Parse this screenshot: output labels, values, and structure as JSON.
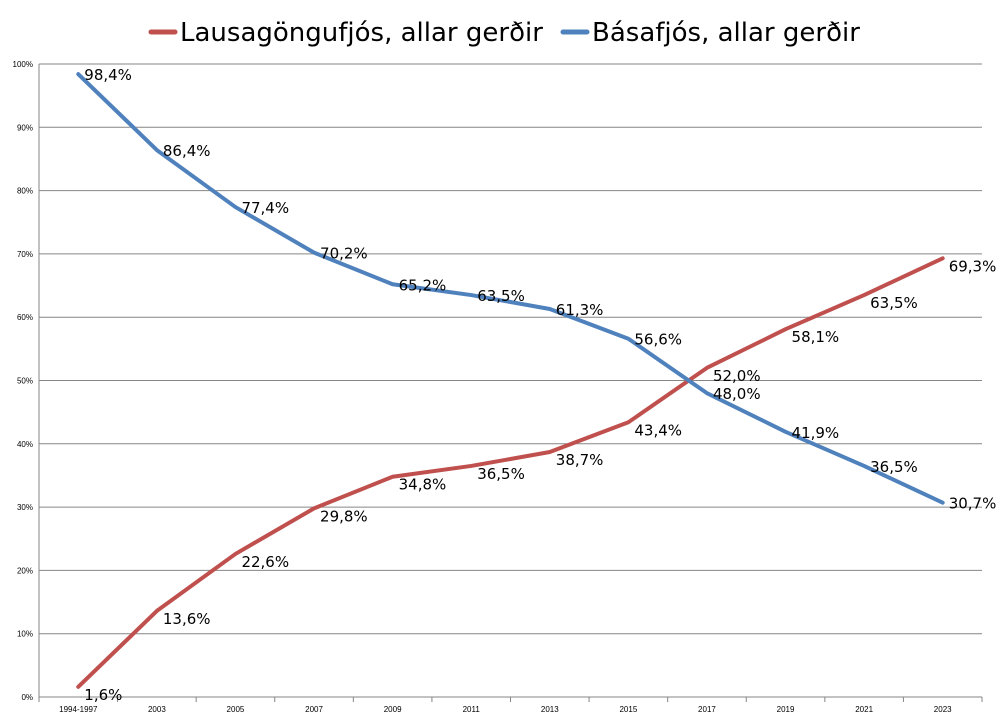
{
  "chart_data": {
    "type": "line",
    "categories": [
      "1994-1997",
      "2003",
      "2005",
      "2007",
      "2009",
      "2011",
      "2013",
      "2015",
      "2017",
      "2019",
      "2021",
      "2023"
    ],
    "series": [
      {
        "name": "Lausagöngufjós, allar gerðir",
        "color": "#C0504D",
        "values": [
          1.6,
          13.6,
          22.6,
          29.8,
          34.8,
          36.5,
          38.7,
          43.4,
          52.0,
          58.1,
          63.5,
          69.3
        ],
        "labels": [
          "1,6%",
          "13,6%",
          "22,6%",
          "29,8%",
          "34,8%",
          "36,5%",
          "38,7%",
          "43,4%",
          "52,0%",
          "58,1%",
          "63,5%",
          "69,3%"
        ]
      },
      {
        "name": "Básafjós, allar gerðir",
        "color": "#4F81BD",
        "values": [
          98.4,
          86.4,
          77.4,
          70.2,
          65.2,
          63.5,
          61.3,
          56.6,
          48.0,
          41.9,
          36.5,
          30.7
        ],
        "labels": [
          "98,4%",
          "86,4%",
          "77,4%",
          "70,2%",
          "65,2%",
          "63,5%",
          "61,3%",
          "56,6%",
          "48,0%",
          "41,9%",
          "36,5%",
          "30,7%"
        ]
      }
    ],
    "y_ticks": [
      "0%",
      "10%",
      "20%",
      "30%",
      "40%",
      "50%",
      "60%",
      "70%",
      "80%",
      "90%",
      "100%"
    ],
    "ylim": [
      0,
      100
    ],
    "grid": true,
    "legend_position": "top"
  }
}
